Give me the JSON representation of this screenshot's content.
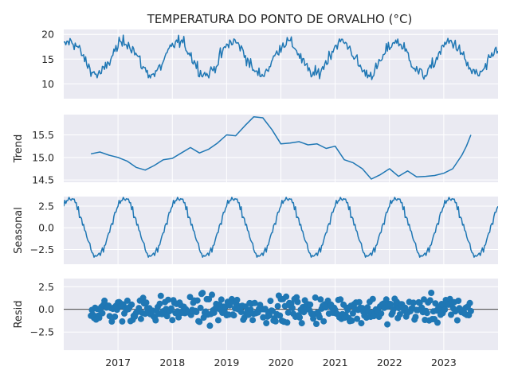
{
  "chart_data": {
    "type": "line",
    "title": "TEMPERATURA DO PONTO DE ORVALHO (°C)",
    "x_range": [
      "2016-01",
      "2024-01"
    ],
    "x_ticks": [
      "2017",
      "2018",
      "2019",
      "2020",
      "2021",
      "2022",
      "2023"
    ],
    "colors": {
      "series": "#1f77b4",
      "panel_bg": "#eaeaf2",
      "grid": "#ffffff",
      "text": "#262626"
    },
    "grid": true,
    "panels": [
      {
        "name": "observed",
        "ylabel": "",
        "ylim": [
          7,
          21
        ],
        "yticks": [
          "10",
          "15",
          "20"
        ],
        "style": "line",
        "mean": 15.2,
        "amplitude": 3.3,
        "noise": 1.3
      },
      {
        "name": "trend",
        "ylabel": "Trend",
        "ylim": [
          14.45,
          15.95
        ],
        "yticks": [
          "14.5",
          "15.0",
          "15.5"
        ],
        "style": "line",
        "points": [
          [
            "2016-07",
            15.08
          ],
          [
            "2016-09",
            15.12
          ],
          [
            "2016-11",
            15.05
          ],
          [
            "2017-01",
            15.0
          ],
          [
            "2017-03",
            14.92
          ],
          [
            "2017-05",
            14.78
          ],
          [
            "2017-07",
            14.72
          ],
          [
            "2017-09",
            14.82
          ],
          [
            "2017-11",
            14.95
          ],
          [
            "2018-01",
            14.98
          ],
          [
            "2018-03",
            15.1
          ],
          [
            "2018-05",
            15.22
          ],
          [
            "2018-07",
            15.1
          ],
          [
            "2018-09",
            15.18
          ],
          [
            "2018-11",
            15.32
          ],
          [
            "2019-01",
            15.5
          ],
          [
            "2019-03",
            15.48
          ],
          [
            "2019-05",
            15.7
          ],
          [
            "2019-07",
            15.9
          ],
          [
            "2019-09",
            15.88
          ],
          [
            "2019-11",
            15.62
          ],
          [
            "2020-01",
            15.3
          ],
          [
            "2020-03",
            15.32
          ],
          [
            "2020-05",
            15.35
          ],
          [
            "2020-07",
            15.28
          ],
          [
            "2020-09",
            15.3
          ],
          [
            "2020-11",
            15.2
          ],
          [
            "2021-01",
            15.25
          ],
          [
            "2021-03",
            14.95
          ],
          [
            "2021-05",
            14.88
          ],
          [
            "2021-07",
            14.75
          ],
          [
            "2021-09",
            14.52
          ],
          [
            "2021-11",
            14.62
          ],
          [
            "2022-01",
            14.75
          ],
          [
            "2022-03",
            14.58
          ],
          [
            "2022-05",
            14.7
          ],
          [
            "2022-07",
            14.57
          ],
          [
            "2022-09",
            14.58
          ],
          [
            "2022-11",
            14.6
          ],
          [
            "2023-01",
            14.65
          ],
          [
            "2023-03",
            14.75
          ],
          [
            "2023-05",
            15.05
          ],
          [
            "2023-06",
            15.25
          ],
          [
            "2023-07",
            15.5
          ]
        ]
      },
      {
        "name": "seasonal",
        "ylabel": "Seasonal",
        "ylim": [
          -4.2,
          3.6
        ],
        "yticks": [
          "2.5",
          "0.0",
          "−2.5"
        ],
        "style": "line",
        "amplitude": 3.3
      },
      {
        "name": "resid",
        "ylabel": "Resid",
        "ylim": [
          -4.5,
          3.4
        ],
        "yticks": [
          "2.5",
          "0.0",
          "−2.5"
        ],
        "style": "scatter",
        "x_span": [
          "2016-07",
          "2023-07"
        ],
        "std": 1.0,
        "reference_line": 0
      }
    ]
  }
}
